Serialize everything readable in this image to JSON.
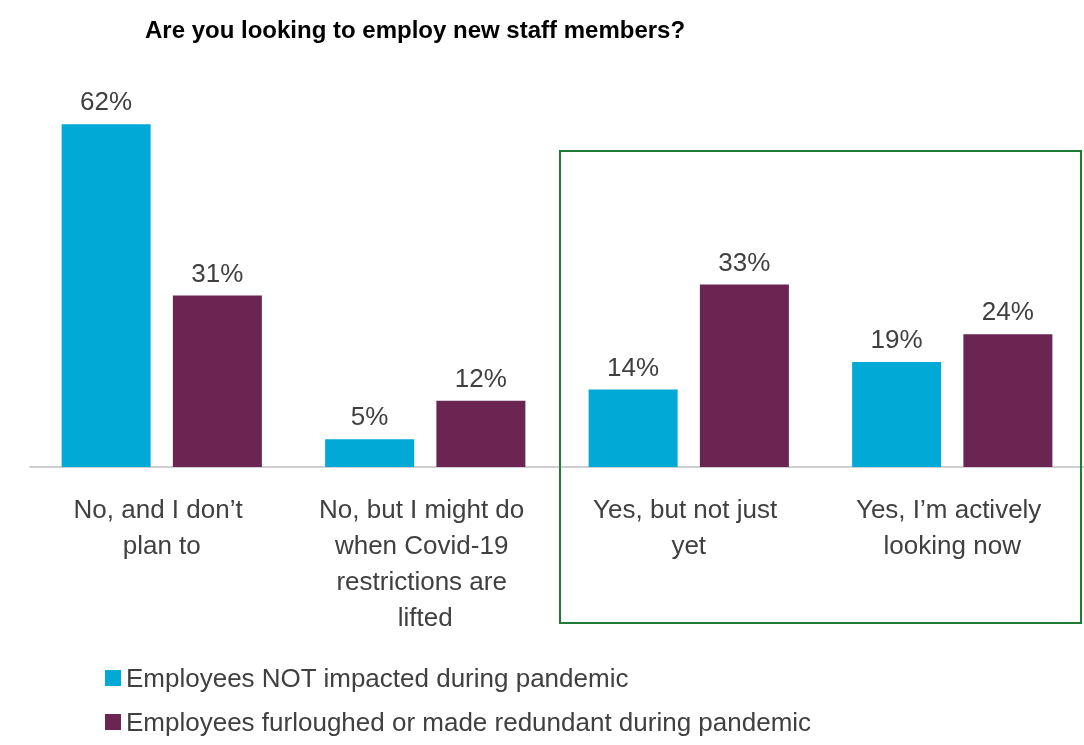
{
  "chart_data": {
    "type": "bar",
    "title": "Are you looking to employ new staff members?",
    "categories": [
      "No, and I don’t plan to",
      "No, but I might do when Covid-19 restrictions are lifted",
      "Yes, but not just yet",
      "Yes, I’m actively looking now"
    ],
    "series": [
      {
        "name": "Employees NOT impacted during pandemic",
        "color": "#00a9d6",
        "values": [
          62,
          5,
          14,
          19
        ],
        "value_labels": [
          "62%",
          "5%",
          "14%",
          "19%"
        ]
      },
      {
        "name": "Employees furloughed or made redundant during pandemic",
        "color": "#6a2552",
        "values": [
          31,
          12,
          33,
          24
        ],
        "value_labels": [
          "31%",
          "12%",
          "33%",
          "24%"
        ]
      }
    ],
    "legend": "bottom"
  }
}
